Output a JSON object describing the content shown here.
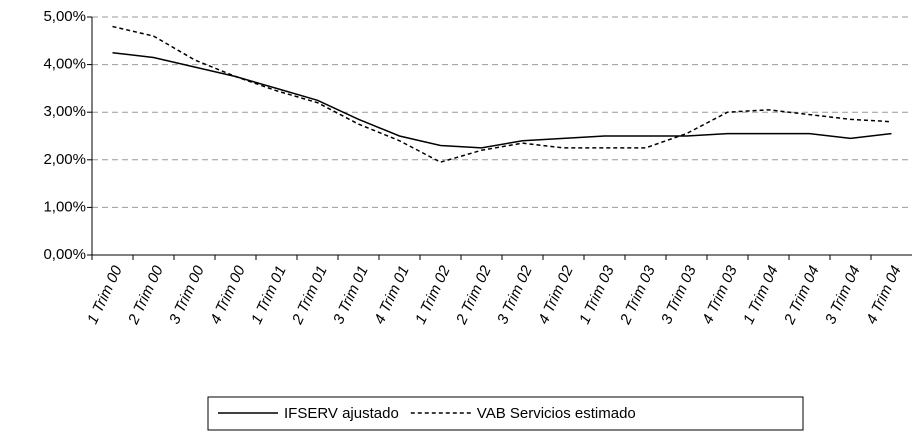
{
  "chart_data": {
    "type": "line",
    "categories": [
      "1 Trim 00",
      "2 Trim 00",
      "3 Trim 00",
      "4 Trim 00",
      "1 Trim 01",
      "2 Trim 01",
      "3 Trim 01",
      "4 Trim 01",
      "1 Trim 02",
      "2 Trim 02",
      "3 Trim 02",
      "4 Trim 02",
      "1 Trim 03",
      "2 Trim 03",
      "3 Trim 03",
      "4 Trim 03",
      "1 Trim 04",
      "2 Trim 04",
      "3 Trim 04",
      "4 Trim 04"
    ],
    "series": [
      {
        "name": "IFSERV ajustado",
        "color": "#000000",
        "dash": "solid",
        "values": [
          4.25,
          4.15,
          3.95,
          3.75,
          3.5,
          3.25,
          2.85,
          2.5,
          2.3,
          2.25,
          2.4,
          2.45,
          2.5,
          2.5,
          2.5,
          2.55,
          2.55,
          2.55,
          2.45,
          2.55
        ]
      },
      {
        "name": "VAB Servicios estimado",
        "color": "#000000",
        "dash": "dashed",
        "values": [
          4.8,
          4.6,
          4.1,
          3.75,
          3.45,
          3.2,
          2.75,
          2.4,
          1.95,
          2.2,
          2.35,
          2.25,
          2.25,
          2.25,
          2.55,
          3.0,
          3.05,
          2.95,
          2.85,
          2.8
        ]
      }
    ],
    "ylim": [
      0,
      5
    ],
    "yticks": [
      {
        "value": 0,
        "label": "0,00%"
      },
      {
        "value": 1,
        "label": "1,00%"
      },
      {
        "value": 2,
        "label": "2,00%"
      },
      {
        "value": 3,
        "label": "3,00%"
      },
      {
        "value": 4,
        "label": "4,00%"
      },
      {
        "value": 5,
        "label": "5,00%"
      }
    ],
    "grid": true,
    "legend": "bottom"
  }
}
